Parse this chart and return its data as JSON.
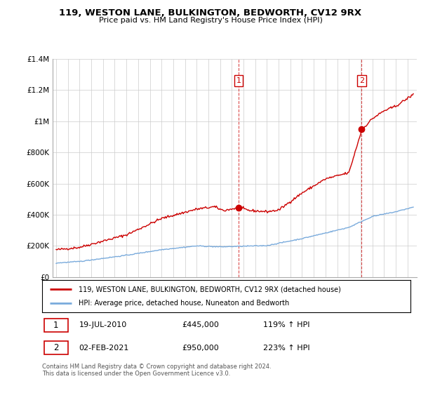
{
  "title": "119, WESTON LANE, BULKINGTON, BEDWORTH, CV12 9RX",
  "subtitle": "Price paid vs. HM Land Registry's House Price Index (HPI)",
  "legend_label1": "119, WESTON LANE, BULKINGTON, BEDWORTH, CV12 9RX (detached house)",
  "legend_label2": "HPI: Average price, detached house, Nuneaton and Bedworth",
  "sale1_date": "19-JUL-2010",
  "sale1_label": "£445,000",
  "sale1_hpi": "119% ↑ HPI",
  "sale2_date": "02-FEB-2021",
  "sale2_label": "£950,000",
  "sale2_hpi": "223% ↑ HPI",
  "footer": "Contains HM Land Registry data © Crown copyright and database right 2024.\nThis data is licensed under the Open Government Licence v3.0.",
  "ylim": [
    0,
    1400000
  ],
  "yticks": [
    0,
    200000,
    400000,
    600000,
    800000,
    1000000,
    1200000,
    1400000
  ],
  "ytick_labels": [
    "£0",
    "£200K",
    "£400K",
    "£600K",
    "£800K",
    "£1M",
    "£1.2M",
    "£1.4M"
  ],
  "background_color": "#ffffff",
  "grid_color": "#cccccc",
  "red_line_color": "#cc0000",
  "blue_line_color": "#7aabdc",
  "vline_color": "#cc0000",
  "marker_box_color": "#cc0000",
  "sale1_x": 2010.583,
  "sale2_x": 2021.083
}
